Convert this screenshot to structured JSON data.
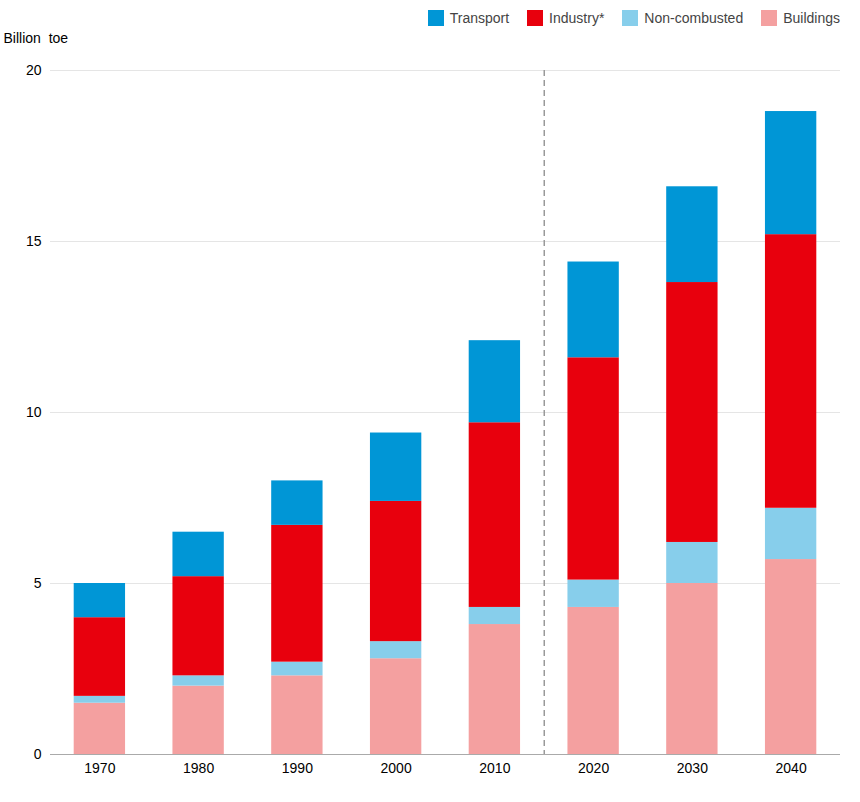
{
  "chart_data": {
    "type": "bar",
    "stacked": true,
    "ylabel": "Billion  toe",
    "categories": [
      "1970",
      "1980",
      "1990",
      "2000",
      "2010",
      "2020",
      "2030",
      "2040"
    ],
    "series": [
      {
        "name": "Buildings",
        "color": "#f4a0a0",
        "values": [
          1.5,
          2.0,
          2.3,
          2.8,
          3.8,
          4.3,
          5.0,
          5.7
        ]
      },
      {
        "name": "Non-combusted",
        "color": "#87ceeb",
        "values": [
          0.2,
          0.3,
          0.4,
          0.5,
          0.5,
          0.8,
          1.2,
          1.5
        ]
      },
      {
        "name": "Industry*",
        "color": "#e8000d",
        "values": [
          2.3,
          2.9,
          4.0,
          4.1,
          5.4,
          6.5,
          7.6,
          8.0
        ]
      },
      {
        "name": "Transport",
        "color": "#0096d6",
        "values": [
          1.0,
          1.3,
          1.3,
          2.0,
          2.4,
          2.8,
          2.8,
          3.6
        ]
      }
    ],
    "ylim": [
      0,
      20
    ],
    "yticks": [
      0,
      5,
      10,
      15,
      20
    ],
    "grid": true,
    "legend": "upper right"
  }
}
